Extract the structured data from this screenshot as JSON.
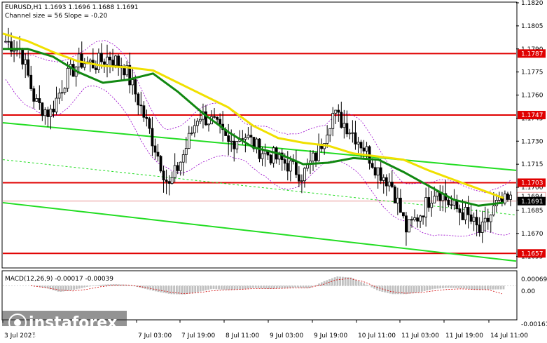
{
  "header": {
    "title": "EURUSD,H1  1.1693 1.1696 1.1688 1.1691",
    "channel_info": "Channel size = 56 Slope = -0.20"
  },
  "watermark": {
    "brand": "instaforex",
    "tagline": "Instant Forex Trading"
  },
  "macd": {
    "label": "MACD(12,26,9) -0.00017 -0.00039",
    "ticks": [
      "0.00069",
      "0.00",
      "-0.00161"
    ]
  },
  "colors": {
    "price_line": "#e00000",
    "tag_bg": "#e00000",
    "channel": "#22dd22",
    "ma_fast": "#f0e000",
    "ma_slow": "#118811",
    "bollinger": "#9900cc",
    "candle": "#000000",
    "macd_hist": "#c0c0c0",
    "macd_signal": "#d00000"
  },
  "chart_data": [
    {
      "type": "candlestick",
      "symbol": "EURUSD",
      "timeframe": "H1",
      "ylim": [
        1.1648,
        1.182
      ],
      "y_ticks": [
        "1.1820",
        "1.1805",
        "1.1790",
        "1.1775",
        "1.1760",
        "1.1745",
        "1.1730",
        "1.1715",
        "1.1700",
        "1.1685",
        "1.1670",
        "1.1655"
      ],
      "x_labels": [
        "3 Jul 2025",
        "7 Jul 03:00",
        "7 Jul 19:00",
        "8 Jul 11:00",
        "9 Jul 03:00",
        "9 Jul 19:00",
        "10 Jul 11:00",
        "11 Jul 03:00",
        "11 Jul 19:00",
        "14 Jul 11:00"
      ],
      "horizontal_levels": [
        {
          "value": 1.1787,
          "label": "1.1787"
        },
        {
          "value": 1.1747,
          "label": "1.1747"
        },
        {
          "value": 1.1703,
          "label": "1.1703"
        },
        {
          "value": 1.1657,
          "label": "1.1657"
        }
      ],
      "current_price": {
        "value": 1.1691,
        "label": "1.1691"
      },
      "secondary_tag": {
        "value": 1.1694,
        "label": "1.1694"
      },
      "channel_lines": [
        {
          "name": "upper",
          "start": 1.1742,
          "end": 1.1711
        },
        {
          "name": "middle",
          "start": 1.1718,
          "end": 1.1682
        },
        {
          "name": "lower",
          "start": 1.169,
          "end": 1.1652
        }
      ],
      "close_path": [
        1.1795,
        1.179,
        1.1755,
        1.1748,
        1.177,
        1.1782,
        1.178,
        1.1785,
        1.1778,
        1.1755,
        1.1728,
        1.17,
        1.1722,
        1.1748,
        1.1742,
        1.1728,
        1.1735,
        1.1725,
        1.172,
        1.1715,
        1.1708,
        1.1722,
        1.1748,
        1.174,
        1.1728,
        1.1712,
        1.1702,
        1.1672,
        1.1684,
        1.17,
        1.1688,
        1.1682,
        1.167,
        1.1688,
        1.1691
      ],
      "ma_fast": [
        1.18,
        1.1795,
        1.1788,
        1.1782,
        1.1779,
        1.1778,
        1.1776,
        1.1768,
        1.176,
        1.1752,
        1.174,
        1.1732,
        1.1729,
        1.1727,
        1.1722,
        1.172,
        1.1718,
        1.1711,
        1.1705,
        1.1699,
        1.1693
      ],
      "ma_slow": [
        1.179,
        1.179,
        1.1785,
        1.1775,
        1.1768,
        1.177,
        1.1774,
        1.1762,
        1.1748,
        1.1736,
        1.1726,
        1.1722,
        1.1715,
        1.1716,
        1.1719,
        1.1718,
        1.171,
        1.1701,
        1.1692,
        1.1688,
        1.169
      ]
    },
    {
      "type": "bar",
      "name": "MACD(12,26,9)",
      "ylim": [
        -0.00161,
        0.00069
      ],
      "values": [
        2e-05,
        -0.0001,
        -0.0003,
        -0.0002,
        -5e-05,
        5e-05,
        8e-05,
        4e-05,
        -0.00012,
        -0.00028,
        -0.0004,
        -0.00042,
        -0.0003,
        -0.00015,
        -0.0002,
        -0.00018,
        -0.0001,
        -0.00015,
        -0.00012,
        -8e-05,
        -0.00012,
        0.0002,
        0.00045,
        0.0004,
        0.0001,
        -0.00025,
        -0.0004,
        -0.0004,
        -0.0003,
        -0.00015,
        -0.0001,
        -0.00012,
        -0.0002,
        -0.00018,
        -0.00017
      ],
      "signal": [
        0.0,
        -8e-05,
        -0.0002,
        -0.00025,
        -0.00018,
        -5e-05,
        3e-05,
        4e-05,
        -5e-05,
        -0.00018,
        -0.0003,
        -0.00038,
        -0.00034,
        -0.00025,
        -0.0002,
        -0.00018,
        -0.00014,
        -0.00014,
        -0.00013,
        -0.0001,
        -0.0001,
        5e-05,
        0.00028,
        0.00035,
        0.0002,
        -8e-05,
        -0.00028,
        -0.00036,
        -0.00034,
        -0.00025,
        -0.00018,
        -0.00015,
        -0.00018,
        -0.00019,
        -0.00039
      ]
    }
  ]
}
